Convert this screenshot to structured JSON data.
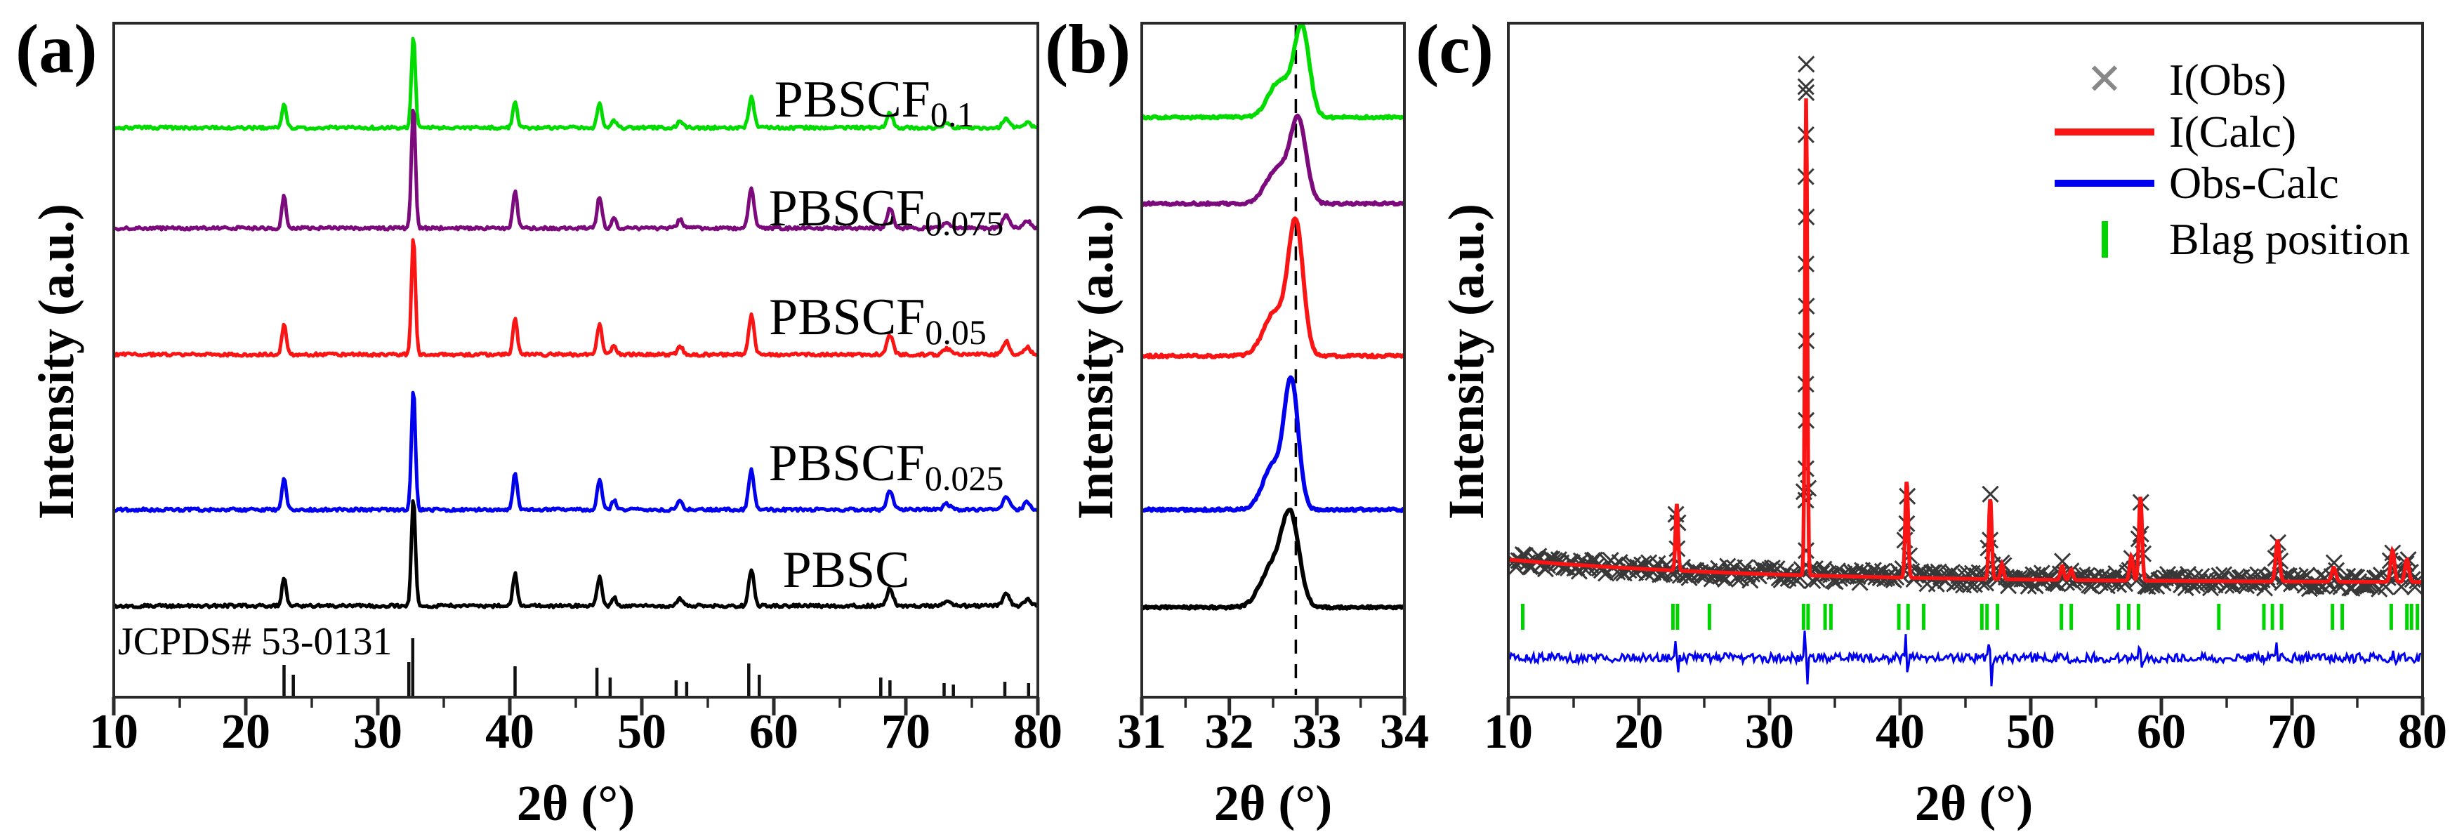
{
  "figure": {
    "panel_labels": [
      "(a)",
      "(b)",
      "(c)"
    ],
    "x_axis_title": "2θ (°)",
    "y_axis_title": "Intensity (a.u.)"
  },
  "icons": {
    "obs_cross": "✕"
  },
  "chart_data": [
    {
      "id": "a",
      "type": "line",
      "title": "XRD patterns of PBSC and PBSCF samples",
      "xlabel": "2θ (°)",
      "ylabel": "Intensity (a.u.)",
      "xlim": [
        10,
        80
      ],
      "xticks": [
        10,
        20,
        30,
        40,
        50,
        60,
        70,
        80
      ],
      "minor_step": 5,
      "grid": false,
      "peak_profile": [
        [
          22.9,
          0.26,
          0.16
        ],
        [
          32.7,
          1.0,
          0.15
        ],
        [
          40.4,
          0.3,
          0.17
        ],
        [
          46.8,
          0.26,
          0.18
        ],
        [
          47.9,
          0.08,
          0.17
        ],
        [
          52.9,
          0.07,
          0.2
        ],
        [
          58.3,
          0.33,
          0.2
        ],
        [
          68.8,
          0.16,
          0.23
        ],
        [
          73.1,
          0.05,
          0.25
        ],
        [
          77.6,
          0.11,
          0.25
        ],
        [
          79.2,
          0.06,
          0.25
        ]
      ],
      "series": [
        {
          "name": "PBSCF",
          "subscript": "0.1",
          "color": "#00dc00",
          "baseline_y": 182,
          "main_height": 130
        },
        {
          "name": "PBSCF",
          "subscript": "0.075",
          "color": "#7d0a7d",
          "baseline_y": 325,
          "main_height": 175
        },
        {
          "name": "PBSCF",
          "subscript": "0.05",
          "color": "#fa1414",
          "baseline_y": 505,
          "main_height": 168
        },
        {
          "name": "PBSCF",
          "subscript": "0.025",
          "color": "#0000ee",
          "baseline_y": 726,
          "main_height": 172
        },
        {
          "name": "PBSC",
          "subscript": "",
          "color": "#000000",
          "baseline_y": 863,
          "main_height": 155
        }
      ],
      "reference": {
        "label": "JCPDS# 53-0131",
        "sticks": [
          [
            22.9,
            44
          ],
          [
            23.6,
            30
          ],
          [
            32.35,
            48
          ],
          [
            32.65,
            82
          ],
          [
            40.4,
            42
          ],
          [
            46.6,
            40
          ],
          [
            47.6,
            26
          ],
          [
            52.6,
            22
          ],
          [
            53.4,
            20
          ],
          [
            58.1,
            46
          ],
          [
            58.9,
            30
          ],
          [
            68.1,
            26
          ],
          [
            68.8,
            22
          ],
          [
            72.9,
            18
          ],
          [
            73.6,
            16
          ],
          [
            77.5,
            20
          ],
          [
            79.3,
            18
          ]
        ]
      }
    },
    {
      "id": "b",
      "type": "line",
      "title": "Enlarged main peak region",
      "xlabel": "2θ (°)",
      "ylabel": "Intensity (a.u.)",
      "xlim": [
        31,
        34
      ],
      "xticks": [
        31,
        32,
        33,
        34
      ],
      "minor_step": 0.5,
      "grid": false,
      "dashed_line_x": 32.76,
      "series": [
        {
          "name": "PBSCF",
          "subscript": "0.1",
          "color": "#00dc00",
          "baseline_y": 167,
          "peaks": [
            [
              32.58,
              52,
              0.13
            ],
            [
              32.83,
              125,
              0.085
            ]
          ]
        },
        {
          "name": "PBSCF",
          "subscript": "0.075",
          "color": "#7d0a7d",
          "baseline_y": 290,
          "peaks": [
            [
              32.55,
              50,
              0.13
            ],
            [
              32.79,
              115,
              0.09
            ]
          ]
        },
        {
          "name": "PBSCF",
          "subscript": "0.05",
          "color": "#fa1414",
          "baseline_y": 507,
          "peaks": [
            [
              32.52,
              62,
              0.13
            ],
            [
              32.76,
              185,
              0.085
            ]
          ]
        },
        {
          "name": "PBSCF",
          "subscript": "0.025",
          "color": "#0000ee",
          "baseline_y": 726,
          "peaks": [
            [
              32.5,
              62,
              0.12
            ],
            [
              32.71,
              175,
              0.08
            ]
          ]
        },
        {
          "name": "PBSC",
          "subscript": "",
          "color": "#000000",
          "baseline_y": 865,
          "peaks": [
            [
              32.48,
              55,
              0.13
            ],
            [
              32.7,
              125,
              0.1
            ]
          ]
        }
      ]
    },
    {
      "id": "c",
      "type": "scatter+line",
      "title": "Rietveld refinement profile",
      "xlabel": "2θ (°)",
      "ylabel": "Intensity (a.u.)",
      "xlim": [
        10,
        80
      ],
      "xticks": [
        10,
        20,
        30,
        40,
        50,
        60,
        70,
        80
      ],
      "minor_step": 5,
      "grid": false,
      "background": {
        "y_start": 797,
        "drop": 33,
        "tau": 20
      },
      "calc_color": "#fa1414",
      "peaks": [
        [
          22.9,
          95,
          0.1
        ],
        [
          32.8,
          680,
          0.09
        ],
        [
          40.5,
          138,
          0.11
        ],
        [
          46.9,
          115,
          0.11
        ],
        [
          47.8,
          22,
          0.11
        ],
        [
          52.4,
          20,
          0.13
        ],
        [
          53.1,
          15,
          0.13
        ],
        [
          57.7,
          35,
          0.13
        ],
        [
          58.4,
          120,
          0.12
        ],
        [
          68.9,
          58,
          0.15
        ],
        [
          73.2,
          20,
          0.16
        ],
        [
          77.7,
          45,
          0.15
        ],
        [
          78.8,
          32,
          0.15
        ]
      ],
      "bragg_color": "#00d400",
      "bragg_y": [
        860,
        897
      ],
      "bragg_positions": [
        11.1,
        22.6,
        22.95,
        25.4,
        32.6,
        32.95,
        34.25,
        34.7,
        39.9,
        40.6,
        41.8,
        46.25,
        46.65,
        47.45,
        52.35,
        53.1,
        56.7,
        57.5,
        58.25,
        64.4,
        67.85,
        68.5,
        69.2,
        73.1,
        73.85,
        77.6,
        78.8,
        79.15,
        79.6
      ],
      "diff": {
        "color": "#0000ee",
        "center_y": 937,
        "noise": 6.5,
        "spikes": [
          [
            22.9,
            20,
            26
          ],
          [
            32.8,
            45,
            36
          ],
          [
            40.5,
            30,
            30
          ],
          [
            46.9,
            33,
            40
          ],
          [
            52.9,
            8,
            8
          ],
          [
            58.4,
            26,
            20
          ],
          [
            68.9,
            24,
            12
          ],
          [
            77.8,
            12,
            10
          ]
        ]
      },
      "legend": [
        {
          "marker": "cross",
          "color": "#888888",
          "label": "I(Obs)"
        },
        {
          "marker": "line",
          "color": "#fa1414",
          "label": "I(Calc)"
        },
        {
          "marker": "line",
          "color": "#0000ee",
          "label": "Obs-Calc"
        },
        {
          "marker": "tick",
          "color": "#00d400",
          "label": "Blag position"
        }
      ]
    }
  ]
}
